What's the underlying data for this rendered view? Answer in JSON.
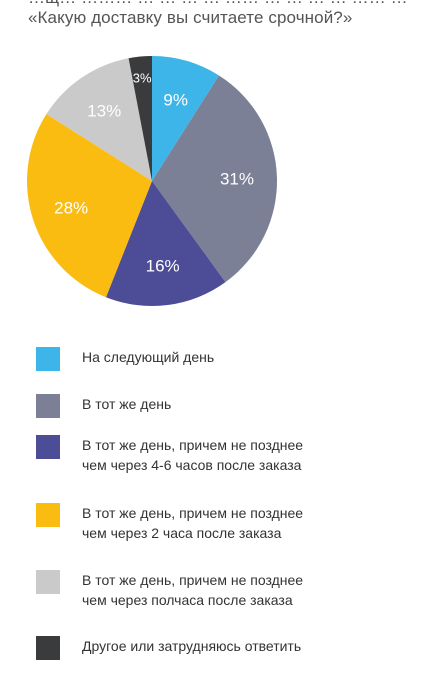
{
  "header": {
    "title_top_partial": "…щ… ……… … … … … …… … … … … …… …",
    "title": "«Какую доставку вы считаете срочной?»"
  },
  "chart_data": {
    "type": "pie",
    "title": "«Какую доставку вы считаете срочной?»",
    "slices": [
      {
        "label": "На следующий день",
        "value": 9,
        "display": "9%",
        "color": "#3db5e8"
      },
      {
        "label": "В тот же день",
        "value": 31,
        "display": "31%",
        "color": "#7c8096"
      },
      {
        "label": "В тот же день, причем не позднее\nчем через 4-6 часов после заказа",
        "value": 16,
        "display": "16%",
        "color": "#4d4d97"
      },
      {
        "label": "В тот же день, причем не позднее\nчем через 2 часа после заказа",
        "value": 28,
        "display": "28%",
        "color": "#fbbc12"
      },
      {
        "label": "В тот же день, причем не позднее\nчем через полчаса после заказа",
        "value": 13,
        "display": "13%",
        "color": "#c9cac9"
      },
      {
        "label": "Другое или затрудняюсь ответить",
        "value": 3,
        "display": "3%",
        "color": "#3a3b3d"
      }
    ],
    "start_angle_deg": 0,
    "direction": "clockwise",
    "legend_placement": "bottom"
  }
}
